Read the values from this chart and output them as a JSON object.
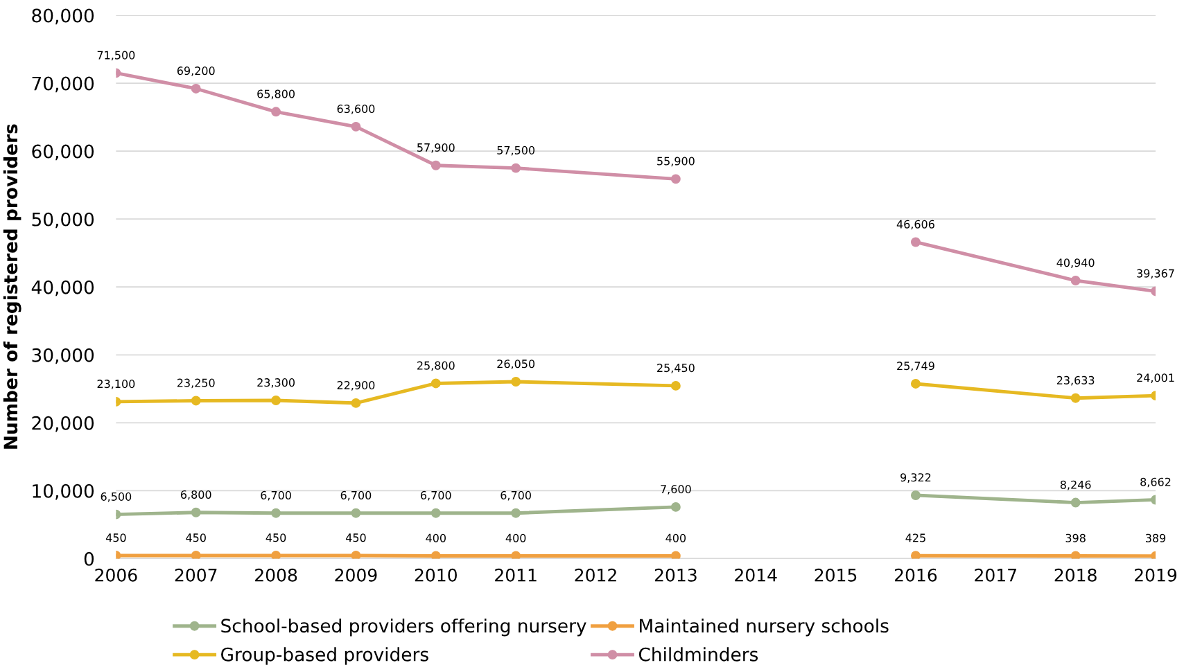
{
  "chart_data": {
    "type": "line",
    "ylabel": "Number of registered providers",
    "x": [
      2006,
      2007,
      2008,
      2009,
      2010,
      2011,
      2013,
      2014,
      2016,
      2018,
      2019
    ],
    "xlim": [
      2006,
      2019
    ],
    "xticks": [
      2006,
      2007,
      2008,
      2009,
      2010,
      2011,
      2012,
      2013,
      2014,
      2015,
      2016,
      2017,
      2018,
      2019
    ],
    "ylim": [
      0,
      80000
    ],
    "yticks": [
      {
        "value": 0,
        "label": "0"
      },
      {
        "value": 10000,
        "label": "10,000"
      },
      {
        "value": 20000,
        "label": "20,000"
      },
      {
        "value": 30000,
        "label": "30,000"
      },
      {
        "value": 40000,
        "label": "40,000"
      },
      {
        "value": 50000,
        "label": "50,000"
      },
      {
        "value": 60000,
        "label": "60,000"
      },
      {
        "value": 70000,
        "label": "70,000"
      },
      {
        "value": 80000,
        "label": "80,000"
      }
    ],
    "series": [
      {
        "name": "School-based providers offering nursery",
        "color": "#9fb48c",
        "values": [
          6500,
          6800,
          6700,
          6700,
          6700,
          6700,
          7600,
          null,
          9322,
          8246,
          8662
        ],
        "value_labels": [
          "6,500",
          "6,800",
          "6,700",
          "6,700",
          "6,700",
          "6,700",
          "7,600",
          null,
          "9,322",
          "8,246",
          "8,662"
        ]
      },
      {
        "name": "Maintained nursery schools",
        "color": "#f0a040",
        "values": [
          450,
          450,
          450,
          450,
          400,
          400,
          400,
          null,
          425,
          398,
          389
        ],
        "value_labels": [
          "450",
          "450",
          "450",
          "450",
          "400",
          "400",
          "400",
          null,
          "425",
          "398",
          "389"
        ]
      },
      {
        "name": "Group-based providers",
        "color": "#e6b922",
        "values": [
          23100,
          23250,
          23300,
          22900,
          25800,
          26050,
          25450,
          null,
          25749,
          23633,
          24001
        ],
        "value_labels": [
          "23,100",
          "23,250",
          "23,300",
          "22,900",
          "25,800",
          "26,050",
          "25,450",
          null,
          "25,749",
          "23,633",
          "24,001"
        ]
      },
      {
        "name": "Childminders",
        "color": "#d08ea6",
        "values": [
          71500,
          69200,
          65800,
          63600,
          57900,
          57500,
          55900,
          null,
          46606,
          40940,
          39367
        ],
        "value_labels": [
          "71,500",
          "69,200",
          "65,800",
          "63,600",
          "57,900",
          "57,500",
          "55,900",
          null,
          "46,606",
          "40,940",
          "39,367"
        ]
      }
    ],
    "grid": "y",
    "legend": "bottom",
    "marker": "circle",
    "line_style": "solid"
  }
}
